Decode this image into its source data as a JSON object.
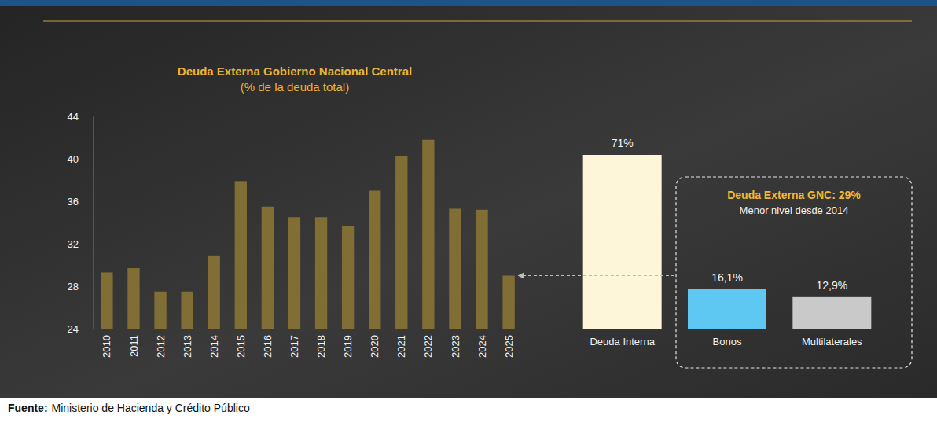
{
  "chart_data": [
    {
      "type": "bar",
      "title": "Deuda Externa Gobierno Nacional Central",
      "subtitle": "(% de la deuda total)",
      "categories": [
        "2010",
        "2011",
        "2012",
        "2013",
        "2014",
        "2015",
        "2016",
        "2017",
        "2018",
        "2019",
        "2020",
        "2021",
        "2022",
        "2023",
        "2024",
        "2025"
      ],
      "values": [
        29.3,
        29.7,
        27.5,
        27.5,
        30.9,
        37.9,
        35.5,
        34.5,
        34.5,
        33.7,
        37.0,
        40.3,
        41.8,
        35.3,
        35.2,
        29.0
      ],
      "color": "#8a7434",
      "ylim": [
        24,
        44
      ],
      "yticks": [
        24,
        28,
        32,
        36,
        40,
        44
      ],
      "grid": false
    },
    {
      "type": "bar",
      "categories": [
        "Deuda Interna",
        "Bonos",
        "Multilaterales"
      ],
      "values": [
        71,
        16.1,
        12.9
      ],
      "value_labels": [
        "71%",
        "16,1%",
        "12,9%"
      ],
      "colors": [
        "#fdf6d8",
        "#5ec8f2",
        "#c9c9c9"
      ],
      "data_labels": true,
      "ylim": [
        0,
        71
      ],
      "tick_labels": "x",
      "annotations": [
        "Deuda Externa GNC: 29%",
        "Menor nivel desde 2014"
      ]
    }
  ],
  "source": {
    "label": "Fuente:",
    "text": "Ministerio de Hacienda y Crédito Público"
  }
}
